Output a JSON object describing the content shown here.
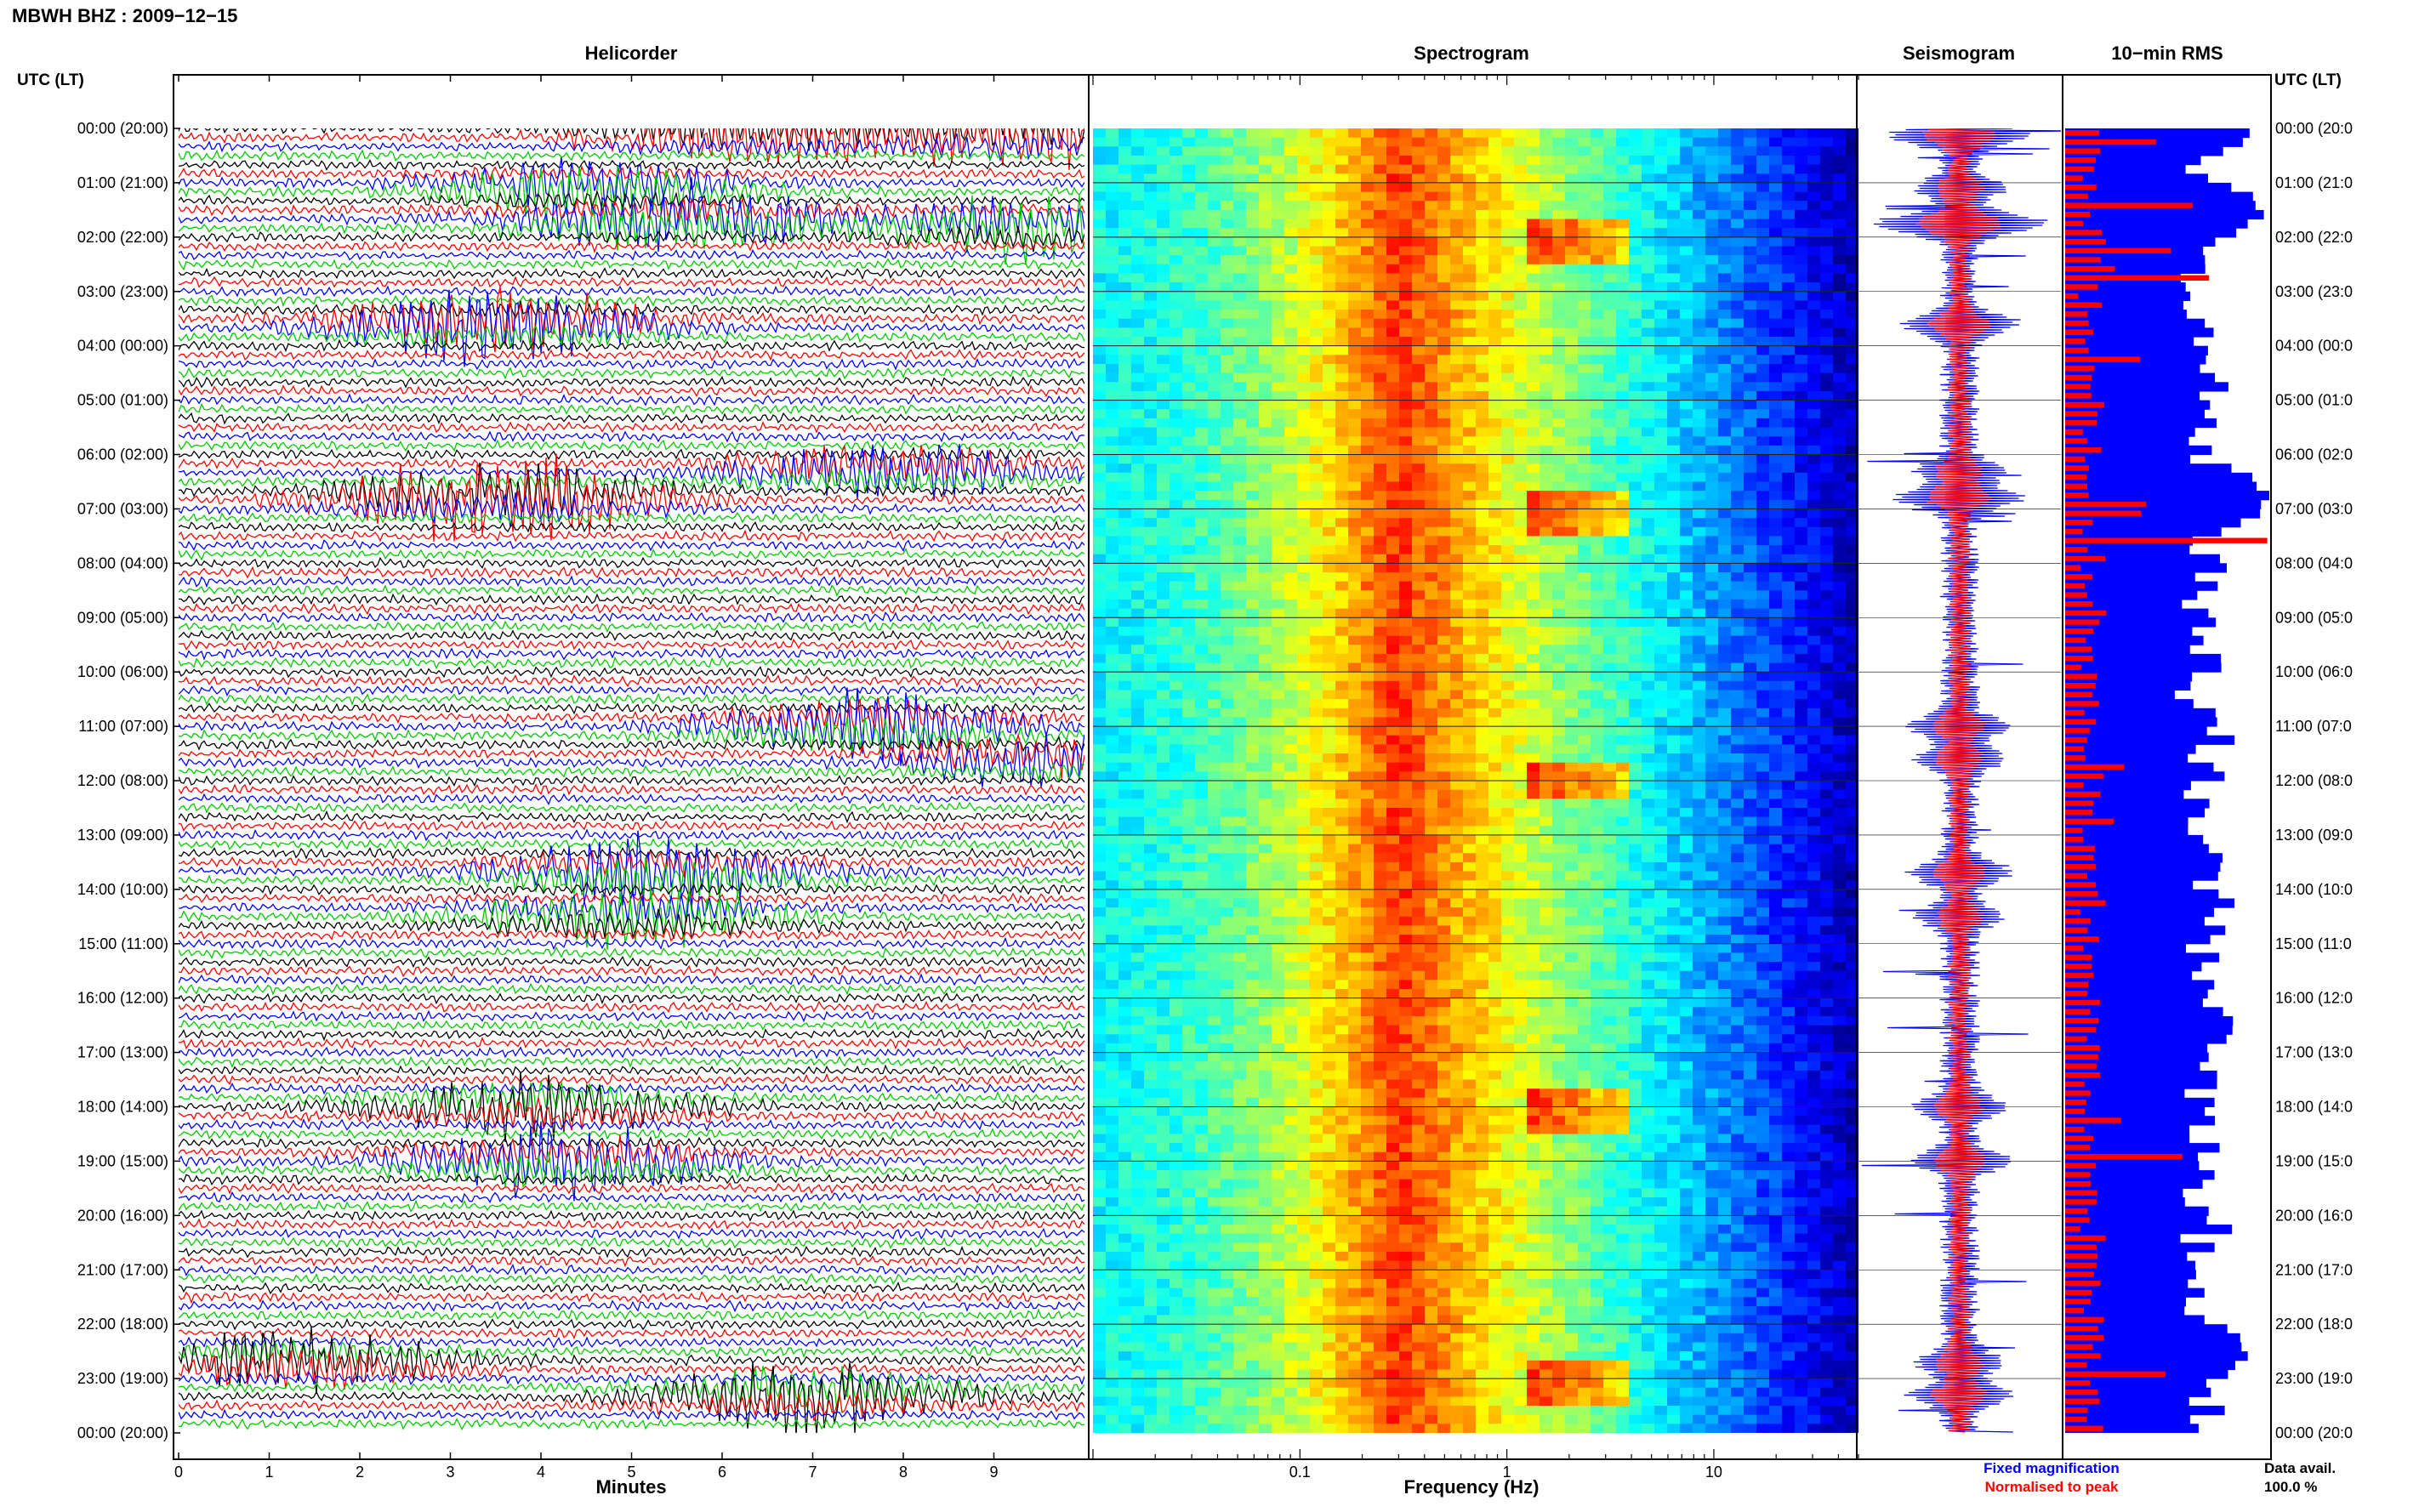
{
  "title": "MBWH BHZ : 2009−12−15",
  "utc_header": "UTC (LT)",
  "panels": {
    "helicorder": "Helicorder",
    "spectrogram": "Spectrogram",
    "seismogram": "Seismogram",
    "rms": "10−min RMS"
  },
  "legend": {
    "fixed": "Fixed magnification",
    "normalised": "Normalised to peak",
    "fixed_color": "#0000ff",
    "normalised_color": "#ff0000"
  },
  "data_avail": {
    "label": "Data avail.",
    "value": "100.0 %"
  },
  "colors": {
    "trace_cycle": [
      "#000000",
      "#ff0000",
      "#0000ff",
      "#00cc00"
    ]
  },
  "chart_data": [
    {
      "type": "line",
      "name": "helicorder",
      "xlabel": "Minutes",
      "xlim": [
        0,
        10
      ],
      "x_ticks": [
        "0",
        "1",
        "2",
        "3",
        "4",
        "5",
        "6",
        "7",
        "8",
        "9"
      ],
      "y_ticks_left": [
        "00:00 (20:00)",
        "01:00 (21:00)",
        "02:00 (22:00)",
        "03:00 (23:00)",
        "04:00 (00:00)",
        "05:00 (01:00)",
        "06:00 (02:00)",
        "07:00 (03:00)",
        "08:00 (04:00)",
        "09:00 (05:00)",
        "10:00 (06:00)",
        "11:00 (07:00)",
        "12:00 (08:00)",
        "13:00 (09:00)",
        "14:00 (10:00)",
        "15:00 (11:00)",
        "16:00 (12:00)",
        "17:00 (13:00)",
        "18:00 (14:00)",
        "19:00 (15:00)",
        "20:00 (16:00)",
        "21:00 (17:00)",
        "22:00 (18:00)",
        "23:00 (19:00)",
        "00:00 (20:00)"
      ],
      "y_ticks_right": [
        "00:00 (20:0",
        "01:00 (21:0",
        "02:00 (22:0",
        "03:00 (23:0",
        "04:00 (00:0",
        "05:00 (01:0",
        "06:00 (02:0",
        "07:00 (03:0",
        "08:00 (04:0",
        "09:00 (05:0",
        "10:00 (06:0",
        "11:00 (07:0",
        "12:00 (08:0",
        "13:00 (09:0",
        "14:00 (10:0",
        "15:00 (11:0",
        "16:00 (12:0",
        "17:00 (13:0",
        "18:00 (14:0",
        "19:00 (15:0",
        "20:00 (16:0",
        "21:00 (17:0",
        "22:00 (18:0",
        "23:00 (19:0",
        "00:00 (20:0"
      ],
      "lines_per_hour": 6,
      "events": [
        {
          "hour": 0.1,
          "minute": 6.3,
          "amp": 2.2,
          "color": "#ff0000"
        },
        {
          "hour": 0.15,
          "minute": 9.4,
          "amp": 2.5,
          "color": "#ff0000"
        },
        {
          "hour": 1.1,
          "minute": 4.5,
          "amp": 2.5,
          "color": "#0000ff"
        },
        {
          "hour": 1.7,
          "minute": 5.5,
          "amp": 3.0,
          "color": "#000000"
        },
        {
          "hour": 1.8,
          "minute": 9.5,
          "amp": 3.0,
          "color": "#ff0000"
        },
        {
          "hour": 3.6,
          "minute": 3.5,
          "amp": 3.5,
          "color": "#ff0000"
        },
        {
          "hour": 6.3,
          "minute": 7.8,
          "amp": 2.5,
          "color": "#00cc00"
        },
        {
          "hour": 6.8,
          "minute": 3.5,
          "amp": 4.0,
          "color": "#ff0000"
        },
        {
          "hour": 11.0,
          "minute": 7.6,
          "amp": 3.0,
          "color": "#0000ff"
        },
        {
          "hour": 11.6,
          "minute": 9.8,
          "amp": 2.5,
          "color": "#00cc00"
        },
        {
          "hour": 13.7,
          "minute": 5.2,
          "amp": 3.0,
          "color": "#0000ff"
        },
        {
          "hour": 14.5,
          "minute": 5.0,
          "amp": 2.5,
          "color": "#0000ff"
        },
        {
          "hour": 18.0,
          "minute": 3.9,
          "amp": 2.5,
          "color": "#000000"
        },
        {
          "hour": 19.0,
          "minute": 4.2,
          "amp": 3.0,
          "color": "#000000"
        },
        {
          "hour": 22.7,
          "minute": 1.3,
          "amp": 2.5,
          "color": "#0000ff"
        },
        {
          "hour": 23.3,
          "minute": 7.0,
          "amp": 3.0,
          "color": "#000000"
        }
      ]
    },
    {
      "type": "heatmap",
      "name": "spectrogram",
      "xlabel": "Frequency (Hz)",
      "x_scale": "log",
      "x_ticks": [
        "0.1",
        "1",
        "10"
      ],
      "xlim": [
        0.01,
        50
      ],
      "ylim_hours": [
        0,
        24
      ],
      "energy_peak_hz": 0.3,
      "bright_bands_hours": [
        2.0,
        7.0,
        11.9,
        18.0,
        23.0
      ]
    },
    {
      "type": "line",
      "name": "seismogram",
      "series": [
        {
          "name": "Fixed magnification",
          "color": "#0000ff"
        },
        {
          "name": "Normalised to peak",
          "color": "#ff0000"
        }
      ],
      "ylim_hours": [
        0,
        24
      ]
    },
    {
      "type": "bar",
      "name": "10-min RMS",
      "orientation": "horizontal",
      "bins": 144,
      "series": [
        {
          "name": "Fixed magnification",
          "color": "#0000ff"
        },
        {
          "name": "Normalised to peak",
          "color": "#ff0000"
        }
      ],
      "normalised_peaks": [
        {
          "hour": 0.2,
          "value": 0.55
        },
        {
          "hour": 1.4,
          "value": 0.6
        },
        {
          "hour": 2.2,
          "value": 0.65
        },
        {
          "hour": 2.7,
          "value": 0.85
        },
        {
          "hour": 4.3,
          "value": 0.42
        },
        {
          "hour": 7.0,
          "value": 0.72
        },
        {
          "hour": 7.6,
          "value": 1.0
        },
        {
          "hour": 11.7,
          "value": 0.35
        },
        {
          "hour": 12.8,
          "value": 0.28
        },
        {
          "hour": 18.3,
          "value": 0.3
        },
        {
          "hour": 18.9,
          "value": 0.55
        },
        {
          "hour": 22.9,
          "value": 0.5
        }
      ],
      "fixed_peaks": [
        {
          "hour": 0.0,
          "value": 0.9
        },
        {
          "hour": 1.5,
          "value": 0.95
        },
        {
          "hour": 6.8,
          "value": 1.0
        },
        {
          "hour": 13.5,
          "value": 0.75
        },
        {
          "hour": 16.5,
          "value": 0.8
        },
        {
          "hour": 20.5,
          "value": 0.6
        },
        {
          "hour": 22.5,
          "value": 0.9
        }
      ]
    }
  ]
}
